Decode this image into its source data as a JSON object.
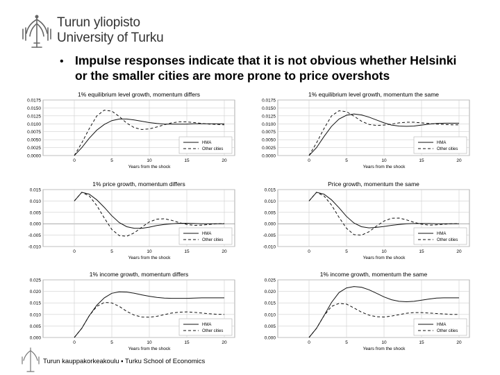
{
  "header": {
    "university_fi": "Turun yliopisto",
    "university_en": "University of Turku",
    "bullet": "•",
    "headline": "Impulse responses indicate that it is not obvious whether Helsinki or the smaller cities are more prone to price overshots"
  },
  "footer": {
    "text": "Turun kauppakorkeakoulu ▪ Turku School of Economics"
  },
  "chart_data": [
    {
      "type": "line",
      "title": "1% equilibrium level growth, momentum differs",
      "xlabel": "Years from the shock",
      "ylabel": "",
      "xlim": [
        0,
        20
      ],
      "ylim": [
        0,
        0.0175
      ],
      "xticks": [
        0,
        5,
        10,
        15,
        20
      ],
      "yticks": [
        "0.0000",
        "0.0025",
        "0.0050",
        "0.0075",
        "0.0100",
        "0.0125",
        "0.0150",
        "0.0175"
      ],
      "grid": true,
      "legend_position": "bottom-right",
      "x": [
        0,
        1,
        2,
        3,
        4,
        5,
        6,
        7,
        8,
        9,
        10,
        11,
        12,
        13,
        14,
        15,
        16,
        17,
        18,
        19,
        20
      ],
      "series": [
        {
          "name": "HMA",
          "style": "solid",
          "values": [
            0,
            0.0025,
            0.0055,
            0.008,
            0.0098,
            0.011,
            0.0115,
            0.0115,
            0.0112,
            0.0108,
            0.0104,
            0.0101,
            0.0099,
            0.0099,
            0.0099,
            0.0099,
            0.01,
            0.01,
            0.01,
            0.01,
            0.01
          ]
        },
        {
          "name": "Other cities",
          "style": "dashed",
          "values": [
            0,
            0.004,
            0.0085,
            0.0125,
            0.0143,
            0.014,
            0.0123,
            0.0102,
            0.0088,
            0.0082,
            0.0084,
            0.009,
            0.0097,
            0.0103,
            0.0106,
            0.0106,
            0.0104,
            0.0101,
            0.0099,
            0.0098,
            0.0097
          ]
        }
      ]
    },
    {
      "type": "line",
      "title": "1% equilibrium level growth, momentum the same",
      "xlabel": "Years from the shock",
      "ylabel": "",
      "xlim": [
        0,
        20
      ],
      "ylim": [
        0,
        0.0175
      ],
      "xticks": [
        0,
        5,
        10,
        15,
        20
      ],
      "yticks": [
        "0.0000",
        "0.0025",
        "0.0050",
        "0.0075",
        "0.0100",
        "0.0125",
        "0.0150",
        "0.0175"
      ],
      "grid": true,
      "legend_position": "bottom-right",
      "x": [
        0,
        1,
        2,
        3,
        4,
        5,
        6,
        7,
        8,
        9,
        10,
        11,
        12,
        13,
        14,
        15,
        16,
        17,
        18,
        19,
        20
      ],
      "series": [
        {
          "name": "HMA",
          "style": "solid",
          "values": [
            0,
            0.0025,
            0.006,
            0.0092,
            0.0115,
            0.0127,
            0.0131,
            0.0128,
            0.0121,
            0.0112,
            0.0103,
            0.0096,
            0.0093,
            0.0092,
            0.0093,
            0.0096,
            0.0099,
            0.0101,
            0.0102,
            0.0102,
            0.0102
          ]
        },
        {
          "name": "Other cities",
          "style": "dashed",
          "values": [
            0,
            0.004,
            0.0085,
            0.0125,
            0.0141,
            0.0138,
            0.0124,
            0.0108,
            0.0098,
            0.0095,
            0.0096,
            0.0099,
            0.0103,
            0.0105,
            0.0105,
            0.0103,
            0.0101,
            0.0099,
            0.0098,
            0.0097,
            0.0097
          ]
        }
      ]
    },
    {
      "type": "line",
      "title": "1% price growth, momentum differs",
      "xlabel": "Years from the shock",
      "ylabel": "",
      "xlim": [
        0,
        20
      ],
      "ylim": [
        -0.01,
        0.015
      ],
      "xticks": [
        0,
        5,
        10,
        15,
        20
      ],
      "yticks": [
        "-0.010",
        "-0.005",
        "0.000",
        "0.005",
        "0.010",
        "0.015"
      ],
      "grid": true,
      "legend_position": "bottom-right",
      "x": [
        0,
        1,
        2,
        3,
        4,
        5,
        6,
        7,
        8,
        9,
        10,
        11,
        12,
        13,
        14,
        15,
        16,
        17,
        18,
        19,
        20
      ],
      "series": [
        {
          "name": "HMA",
          "style": "solid",
          "values": [
            0.01,
            0.0138,
            0.013,
            0.0105,
            0.0072,
            0.0035,
            0.0005,
            -0.0013,
            -0.002,
            -0.002,
            -0.0015,
            -0.0008,
            -0.0003,
            0,
            0.0002,
            0.0002,
            0.0001,
            0,
            0,
            0,
            0
          ]
        },
        {
          "name": "Other cities",
          "style": "dashed",
          "values": [
            0.01,
            0.0138,
            0.0122,
            0.008,
            0.0025,
            -0.0025,
            -0.0052,
            -0.0055,
            -0.004,
            -0.0015,
            0.0008,
            0.002,
            0.0022,
            0.0015,
            0.0005,
            -0.0003,
            -0.0007,
            -0.0006,
            -0.0003,
            0,
            0.0001
          ]
        }
      ]
    },
    {
      "type": "line",
      "title": "Price growth, momentum the same",
      "xlabel": "Years from the shock",
      "ylabel": "",
      "xlim": [
        0,
        20
      ],
      "ylim": [
        -0.01,
        0.015
      ],
      "xticks": [
        0,
        5,
        10,
        15,
        20
      ],
      "yticks": [
        "-0.010",
        "-0.005",
        "0.000",
        "0.005",
        "0.010",
        "0.015"
      ],
      "grid": true,
      "legend_position": "bottom-right",
      "x": [
        0,
        1,
        2,
        3,
        4,
        5,
        6,
        7,
        8,
        9,
        10,
        11,
        12,
        13,
        14,
        15,
        16,
        17,
        18,
        19,
        20
      ],
      "series": [
        {
          "name": "HMA",
          "style": "solid",
          "values": [
            0.01,
            0.0138,
            0.013,
            0.0105,
            0.007,
            0.0032,
            0.0003,
            -0.0013,
            -0.0018,
            -0.0016,
            -0.0012,
            -0.0007,
            -0.0003,
            0,
            0.0001,
            0.0001,
            0.0001,
            0,
            0,
            0,
            0
          ]
        },
        {
          "name": "Other cities",
          "style": "dashed",
          "values": [
            0.01,
            0.0138,
            0.0122,
            0.0082,
            0.0028,
            -0.002,
            -0.0048,
            -0.005,
            -0.0035,
            -0.001,
            0.0012,
            0.0024,
            0.0025,
            0.0017,
            0.0006,
            -0.0002,
            -0.0006,
            -0.0005,
            -0.0002,
            0,
            0.0001
          ]
        }
      ]
    },
    {
      "type": "line",
      "title": "1% income growth, momentum differs",
      "xlabel": "Years from the shock",
      "ylabel": "",
      "xlim": [
        0,
        20
      ],
      "ylim": [
        0,
        0.025
      ],
      "xticks": [
        0,
        5,
        10,
        15,
        20
      ],
      "yticks": [
        "0.000",
        "0.005",
        "0.010",
        "0.015",
        "0.020",
        "0.025"
      ],
      "grid": true,
      "legend_position": "bottom-right",
      "x": [
        0,
        1,
        2,
        3,
        4,
        5,
        6,
        7,
        8,
        9,
        10,
        11,
        12,
        13,
        14,
        15,
        16,
        17,
        18,
        19,
        20
      ],
      "series": [
        {
          "name": "HMA",
          "style": "solid",
          "values": [
            0,
            0.004,
            0.0095,
            0.014,
            0.0172,
            0.0192,
            0.0198,
            0.0197,
            0.0192,
            0.0185,
            0.0179,
            0.0174,
            0.0171,
            0.017,
            0.017,
            0.017,
            0.0171,
            0.0172,
            0.0172,
            0.0172,
            0.0172
          ]
        },
        {
          "name": "Other cities",
          "style": "dashed",
          "values": [
            0,
            0.004,
            0.0095,
            0.0135,
            0.0152,
            0.015,
            0.0135,
            0.0113,
            0.0097,
            0.0089,
            0.0088,
            0.0092,
            0.0099,
            0.0106,
            0.011,
            0.0111,
            0.0109,
            0.0106,
            0.0103,
            0.0101,
            0.01
          ]
        }
      ]
    },
    {
      "type": "line",
      "title": "1% income growth, momentum the same",
      "xlabel": "Years from the shock",
      "ylabel": "",
      "xlim": [
        0,
        20
      ],
      "ylim": [
        0,
        0.025
      ],
      "xticks": [
        0,
        5,
        10,
        15,
        20
      ],
      "yticks": [
        "0.000",
        "0.005",
        "0.010",
        "0.015",
        "0.020",
        "0.025"
      ],
      "grid": true,
      "legend_position": "bottom-right",
      "x": [
        0,
        1,
        2,
        3,
        4,
        5,
        6,
        7,
        8,
        9,
        10,
        11,
        12,
        13,
        14,
        15,
        16,
        17,
        18,
        19,
        20
      ],
      "series": [
        {
          "name": "HMA",
          "style": "solid",
          "values": [
            0,
            0.004,
            0.0095,
            0.0152,
            0.0195,
            0.0215,
            0.0221,
            0.0218,
            0.0207,
            0.0192,
            0.0176,
            0.0164,
            0.0157,
            0.0155,
            0.0157,
            0.0162,
            0.0167,
            0.0171,
            0.0172,
            0.0172,
            0.0172
          ]
        },
        {
          "name": "Other cities",
          "style": "dashed",
          "values": [
            0,
            0.004,
            0.0095,
            0.0135,
            0.0148,
            0.0145,
            0.0128,
            0.011,
            0.0097,
            0.009,
            0.0089,
            0.0093,
            0.0099,
            0.0105,
            0.0108,
            0.0108,
            0.0106,
            0.0104,
            0.0102,
            0.01,
            0.01
          ]
        }
      ]
    }
  ]
}
